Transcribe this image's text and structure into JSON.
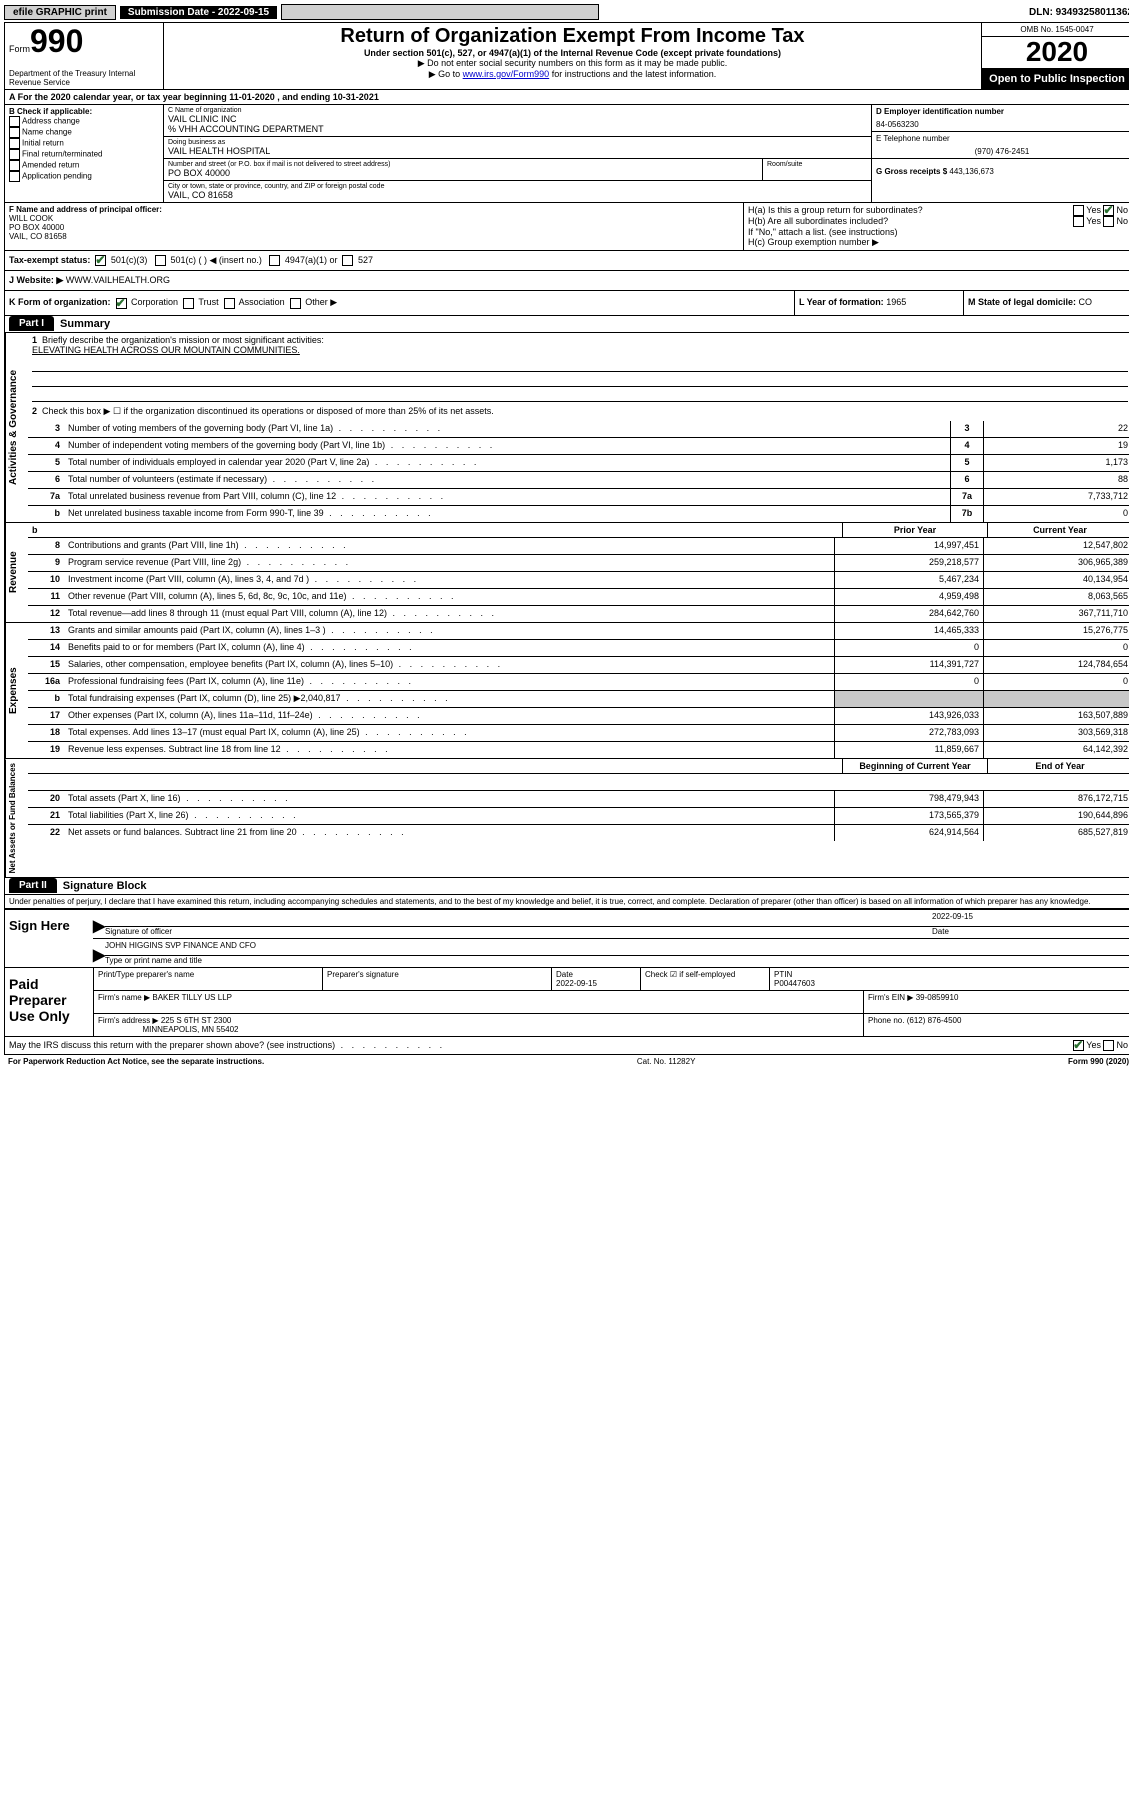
{
  "topbar": {
    "efile": "efile GRAPHIC print",
    "sub_date_label": "Submission Date - 2022-09-15",
    "dln": "DLN: 93493258011362"
  },
  "header": {
    "form_label": "Form",
    "form_num": "990",
    "dept": "Department of the Treasury Internal Revenue Service",
    "title": "Return of Organization Exempt From Income Tax",
    "sub1": "Under section 501(c), 527, or 4947(a)(1) of the Internal Revenue Code (except private foundations)",
    "sub2": "▶ Do not enter social security numbers on this form as it may be made public.",
    "sub3_pre": "▶ Go to ",
    "sub3_link": "www.irs.gov/Form990",
    "sub3_post": " for instructions and the latest information.",
    "omb": "OMB No. 1545-0047",
    "year": "2020",
    "open": "Open to Public Inspection"
  },
  "sectionA": "A For the 2020 calendar year, or tax year beginning 11-01-2020   , and ending 10-31-2021",
  "blockB": {
    "label": "B Check if applicable:",
    "opts": [
      "Address change",
      "Name change",
      "Initial return",
      "Final return/terminated",
      "Amended return",
      "Application pending"
    ]
  },
  "blockC": {
    "name_label": "C Name of organization",
    "name": "VAIL CLINIC INC",
    "care": "% VHH ACCOUNTING DEPARTMENT",
    "dba_label": "Doing business as",
    "dba": "VAIL HEALTH HOSPITAL",
    "street_label": "Number and street (or P.O. box if mail is not delivered to street address)",
    "street": "PO BOX 40000",
    "room_label": "Room/suite",
    "city_label": "City or town, state or province, country, and ZIP or foreign postal code",
    "city": "VAIL, CO  81658"
  },
  "blockD": {
    "label": "D Employer identification number",
    "val": "84-0563230"
  },
  "blockE": {
    "label": "E Telephone number",
    "val": "(970) 476-2451"
  },
  "blockG": {
    "label": "G Gross receipts $ ",
    "val": "443,136,673"
  },
  "blockF": {
    "label": "F Name and address of principal officer:",
    "name": "WILL COOK",
    "addr1": "PO BOX 40000",
    "addr2": "VAIL, CO  81658"
  },
  "blockH": {
    "ha": "H(a)  Is this a group return for subordinates?",
    "hb": "H(b)  Are all subordinates included?",
    "hb_note": "If \"No,\" attach a list. (see instructions)",
    "hc": "H(c)  Group exemption number ▶"
  },
  "taxExempt": {
    "label": "Tax-exempt status:",
    "o1": "501(c)(3)",
    "o2": "501(c) (   ) ◀ (insert no.)",
    "o3": "4947(a)(1) or",
    "o4": "527"
  },
  "website": {
    "label": "J   Website: ▶",
    "val": "WWW.VAILHEALTH.ORG"
  },
  "korg": {
    "label": "K Form of organization:",
    "opts": [
      "Corporation",
      "Trust",
      "Association",
      "Other ▶"
    ],
    "year_label": "L Year of formation: ",
    "year": "1965",
    "state_label": "M State of legal domicile: ",
    "state": "CO"
  },
  "part1": {
    "tab": "Part I",
    "title": "Summary",
    "l1_label": "Briefly describe the organization's mission or most significant activities:",
    "l1_val": "ELEVATING HEALTH ACROSS OUR MOUNTAIN COMMUNITIES.",
    "l2": "Check this box ▶ ☐  if the organization discontinued its operations or disposed of more than 25% of its net assets.",
    "rows_ag": [
      {
        "n": "3",
        "t": "Number of voting members of the governing body (Part VI, line 1a)",
        "b": "3",
        "v": "22"
      },
      {
        "n": "4",
        "t": "Number of independent voting members of the governing body (Part VI, line 1b)",
        "b": "4",
        "v": "19"
      },
      {
        "n": "5",
        "t": "Total number of individuals employed in calendar year 2020 (Part V, line 2a)",
        "b": "5",
        "v": "1,173"
      },
      {
        "n": "6",
        "t": "Total number of volunteers (estimate if necessary)",
        "b": "6",
        "v": "88"
      },
      {
        "n": "7a",
        "t": "Total unrelated business revenue from Part VIII, column (C), line 12",
        "b": "7a",
        "v": "7,733,712"
      },
      {
        "n": "b",
        "t": "Net unrelated business taxable income from Form 990-T, line 39",
        "b": "7b",
        "v": "0"
      }
    ],
    "col_prior": "Prior Year",
    "col_current": "Current Year",
    "rows_rev": [
      {
        "n": "8",
        "t": "Contributions and grants (Part VIII, line 1h)",
        "p": "14,997,451",
        "c": "12,547,802"
      },
      {
        "n": "9",
        "t": "Program service revenue (Part VIII, line 2g)",
        "p": "259,218,577",
        "c": "306,965,389"
      },
      {
        "n": "10",
        "t": "Investment income (Part VIII, column (A), lines 3, 4, and 7d )",
        "p": "5,467,234",
        "c": "40,134,954"
      },
      {
        "n": "11",
        "t": "Other revenue (Part VIII, column (A), lines 5, 6d, 8c, 9c, 10c, and 11e)",
        "p": "4,959,498",
        "c": "8,063,565"
      },
      {
        "n": "12",
        "t": "Total revenue—add lines 8 through 11 (must equal Part VIII, column (A), line 12)",
        "p": "284,642,760",
        "c": "367,711,710"
      }
    ],
    "rows_exp": [
      {
        "n": "13",
        "t": "Grants and similar amounts paid (Part IX, column (A), lines 1–3 )",
        "p": "14,465,333",
        "c": "15,276,775"
      },
      {
        "n": "14",
        "t": "Benefits paid to or for members (Part IX, column (A), line 4)",
        "p": "0",
        "c": "0"
      },
      {
        "n": "15",
        "t": "Salaries, other compensation, employee benefits (Part IX, column (A), lines 5–10)",
        "p": "114,391,727",
        "c": "124,784,654"
      },
      {
        "n": "16a",
        "t": "Professional fundraising fees (Part IX, column (A), line 11e)",
        "p": "0",
        "c": "0"
      },
      {
        "n": "b",
        "t": "Total fundraising expenses (Part IX, column (D), line 25) ▶2,040,817",
        "p": "",
        "c": "",
        "shaded": true
      },
      {
        "n": "17",
        "t": "Other expenses (Part IX, column (A), lines 11a–11d, 11f–24e)",
        "p": "143,926,033",
        "c": "163,507,889"
      },
      {
        "n": "18",
        "t": "Total expenses. Add lines 13–17 (must equal Part IX, column (A), line 25)",
        "p": "272,783,093",
        "c": "303,569,318"
      },
      {
        "n": "19",
        "t": "Revenue less expenses. Subtract line 18 from line 12",
        "p": "11,859,667",
        "c": "64,142,392"
      }
    ],
    "col_begin": "Beginning of Current Year",
    "col_end": "End of Year",
    "rows_net": [
      {
        "n": "20",
        "t": "Total assets (Part X, line 16)",
        "p": "798,479,943",
        "c": "876,172,715"
      },
      {
        "n": "21",
        "t": "Total liabilities (Part X, line 26)",
        "p": "173,565,379",
        "c": "190,644,896"
      },
      {
        "n": "22",
        "t": "Net assets or fund balances. Subtract line 21 from line 20",
        "p": "624,914,564",
        "c": "685,527,819"
      }
    ],
    "vlab_ag": "Activities & Governance",
    "vlab_rev": "Revenue",
    "vlab_exp": "Expenses",
    "vlab_net": "Net Assets or Fund Balances"
  },
  "part2": {
    "tab": "Part II",
    "title": "Signature Block",
    "penalty": "Under penalties of perjury, I declare that I have examined this return, including accompanying schedules and statements, and to the best of my knowledge and belief, it is true, correct, and complete. Declaration of preparer (other than officer) is based on all information of which preparer has any knowledge.",
    "sign_here": "Sign Here",
    "sig_officer": "Signature of officer",
    "date": "Date",
    "sig_date": "2022-09-15",
    "name_title_label": "Type or print name and title",
    "name_title": "JOHN HIGGINS  SVP FINANCE AND CFO",
    "paid": "Paid Preparer Use Only",
    "prep_name_label": "Print/Type preparer's name",
    "prep_sig_label": "Preparer's signature",
    "prep_date_label": "Date",
    "prep_date": "2022-09-15",
    "check_label": "Check ☑ if self-employed",
    "ptin_label": "PTIN",
    "ptin": "P00447603",
    "firm_name_label": "Firm's name    ▶",
    "firm_name": "BAKER TILLY US LLP",
    "firm_ein_label": "Firm's EIN ▶",
    "firm_ein": "39-0859910",
    "firm_addr_label": "Firm's address ▶",
    "firm_addr1": "225 S 6TH ST 2300",
    "firm_addr2": "MINNEAPOLIS, MN  55402",
    "phone_label": "Phone no.",
    "phone": "(612) 876-4500",
    "discuss": "May the IRS discuss this return with the preparer shown above? (see instructions)"
  },
  "footer": {
    "left": "For Paperwork Reduction Act Notice, see the separate instructions.",
    "mid": "Cat. No. 11282Y",
    "right": "Form 990 (2020)"
  }
}
